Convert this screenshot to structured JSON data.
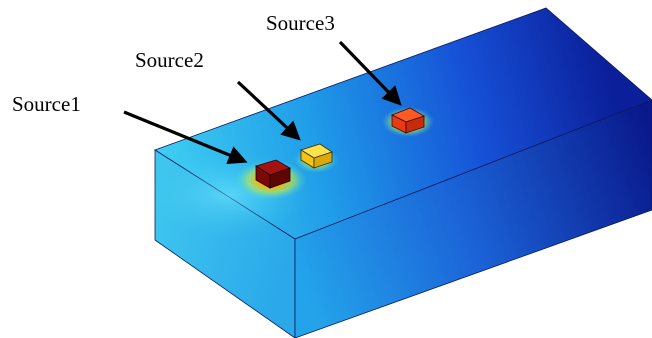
{
  "labels": {
    "source1": "Source1",
    "source2": "Source2",
    "source3": "Source3"
  },
  "colors": {
    "block_light": "#33c9f0",
    "block_mid": "#1a6ee6",
    "block_dark": "#0a1f8f",
    "source1_fill": "#8b0a0a",
    "source2_fill": "#f7d21e",
    "source3_fill": "#f0431a",
    "arrow": "#000000"
  }
}
